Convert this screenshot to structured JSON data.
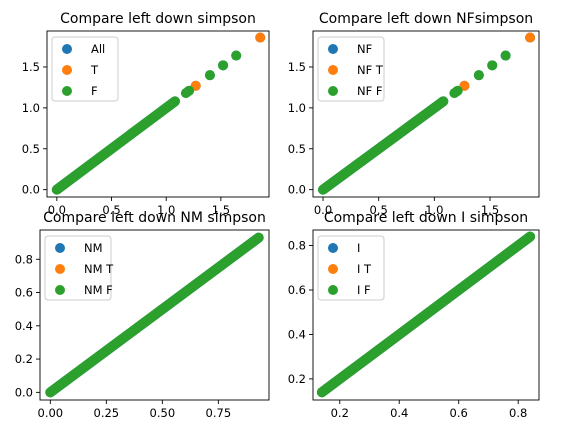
{
  "chart_data": [
    {
      "type": "scatter",
      "title": "Compare left down simpson",
      "xlabel": "",
      "ylabel": "",
      "xlim": [
        -0.09,
        1.94
      ],
      "ylim": [
        -0.09,
        1.94
      ],
      "xticks": [
        0.0,
        0.5,
        1.0,
        1.5
      ],
      "xtick_labels": [
        "0.0",
        "0.5",
        "1.0",
        "1.5"
      ],
      "yticks": [
        0.0,
        0.5,
        1.0,
        1.5
      ],
      "ytick_labels": [
        "0.0",
        "0.5",
        "1.0",
        "1.5"
      ],
      "grid": false,
      "legend": "top-left",
      "series": [
        {
          "name": "All",
          "color": "#1f77b4",
          "line": [
            0.0,
            1.08
          ],
          "points": [
            [
              1.2,
              1.2
            ],
            [
              1.27,
              1.27
            ],
            [
              1.4,
              1.4
            ],
            [
              1.52,
              1.52
            ],
            [
              1.64,
              1.64
            ],
            [
              1.86,
              1.86
            ]
          ]
        },
        {
          "name": "T",
          "color": "#ff7f0e",
          "line": null,
          "points": [
            [
              1.27,
              1.27
            ],
            [
              1.86,
              1.86
            ]
          ]
        },
        {
          "name": "F",
          "color": "#2ca02c",
          "line": [
            0.0,
            1.08
          ],
          "points": [
            [
              1.18,
              1.18
            ],
            [
              1.21,
              1.21
            ],
            [
              1.4,
              1.4
            ],
            [
              1.52,
              1.52
            ],
            [
              1.64,
              1.64
            ]
          ]
        }
      ]
    },
    {
      "type": "scatter",
      "title": "Compare left down NFsimpson",
      "xlabel": "",
      "ylabel": "",
      "xlim": [
        -0.09,
        1.94
      ],
      "ylim": [
        -0.09,
        1.94
      ],
      "xticks": [
        0.0,
        0.5,
        1.0,
        1.5
      ],
      "xtick_labels": [
        "0.0",
        "0.5",
        "1.0",
        "1.5"
      ],
      "yticks": [
        0.0,
        0.5,
        1.0,
        1.5
      ],
      "ytick_labels": [
        "0.0",
        "0.5",
        "1.0",
        "1.5"
      ],
      "grid": false,
      "legend": "top-left",
      "series": [
        {
          "name": "NF",
          "color": "#1f77b4",
          "line": [
            0.0,
            1.08
          ],
          "points": [
            [
              1.2,
              1.2
            ],
            [
              1.27,
              1.27
            ],
            [
              1.4,
              1.4
            ],
            [
              1.52,
              1.52
            ],
            [
              1.64,
              1.64
            ],
            [
              1.86,
              1.86
            ]
          ]
        },
        {
          "name": "NF T",
          "color": "#ff7f0e",
          "line": null,
          "points": [
            [
              1.27,
              1.27
            ],
            [
              1.86,
              1.86
            ]
          ]
        },
        {
          "name": "NF F",
          "color": "#2ca02c",
          "line": [
            0.0,
            1.08
          ],
          "points": [
            [
              1.18,
              1.18
            ],
            [
              1.21,
              1.21
            ],
            [
              1.4,
              1.4
            ],
            [
              1.52,
              1.52
            ],
            [
              1.64,
              1.64
            ]
          ]
        }
      ]
    },
    {
      "type": "scatter",
      "title": "Compare left down NM simpson",
      "xlabel": "",
      "ylabel": "",
      "xlim": [
        -0.046,
        0.976
      ],
      "ylim": [
        -0.046,
        0.976
      ],
      "xticks": [
        0.0,
        0.25,
        0.5,
        0.75
      ],
      "xtick_labels": [
        "0.00",
        "0.25",
        "0.50",
        "0.75"
      ],
      "yticks": [
        0.0,
        0.2,
        0.4,
        0.6,
        0.8
      ],
      "ytick_labels": [
        "0.0",
        "0.2",
        "0.4",
        "0.6",
        "0.8"
      ],
      "grid": false,
      "legend": "top-left",
      "series": [
        {
          "name": "NM",
          "color": "#1f77b4",
          "line": [
            0.0,
            0.93
          ],
          "points": []
        },
        {
          "name": "NM T",
          "color": "#ff7f0e",
          "line": null,
          "points": []
        },
        {
          "name": "NM F",
          "color": "#2ca02c",
          "line": [
            0.0,
            0.93
          ],
          "points": []
        }
      ]
    },
    {
      "type": "scatter",
      "title": "Compare left down I simpson",
      "xlabel": "",
      "ylabel": "",
      "xlim": [
        0.11,
        0.87
      ],
      "ylim": [
        0.105,
        0.87
      ],
      "xticks": [
        0.2,
        0.4,
        0.6,
        0.8
      ],
      "xtick_labels": [
        "0.2",
        "0.4",
        "0.6",
        "0.8"
      ],
      "yticks": [
        0.2,
        0.4,
        0.6,
        0.8
      ],
      "ytick_labels": [
        "0.2",
        "0.4",
        "0.6",
        "0.8"
      ],
      "grid": false,
      "legend": "top-left",
      "series": [
        {
          "name": "I",
          "color": "#1f77b4",
          "line": [
            0.14,
            0.84
          ],
          "points": []
        },
        {
          "name": "I T",
          "color": "#ff7f0e",
          "line": null,
          "points": [
            [
              0.2,
              0.2
            ]
          ]
        },
        {
          "name": "I F",
          "color": "#2ca02c",
          "line": [
            0.14,
            0.84
          ],
          "points": [
            [
              0.14,
              0.14
            ],
            [
              0.16,
              0.16
            ],
            [
              0.8,
              0.8
            ],
            [
              0.83,
              0.83
            ],
            [
              0.84,
              0.84
            ]
          ]
        }
      ]
    }
  ]
}
